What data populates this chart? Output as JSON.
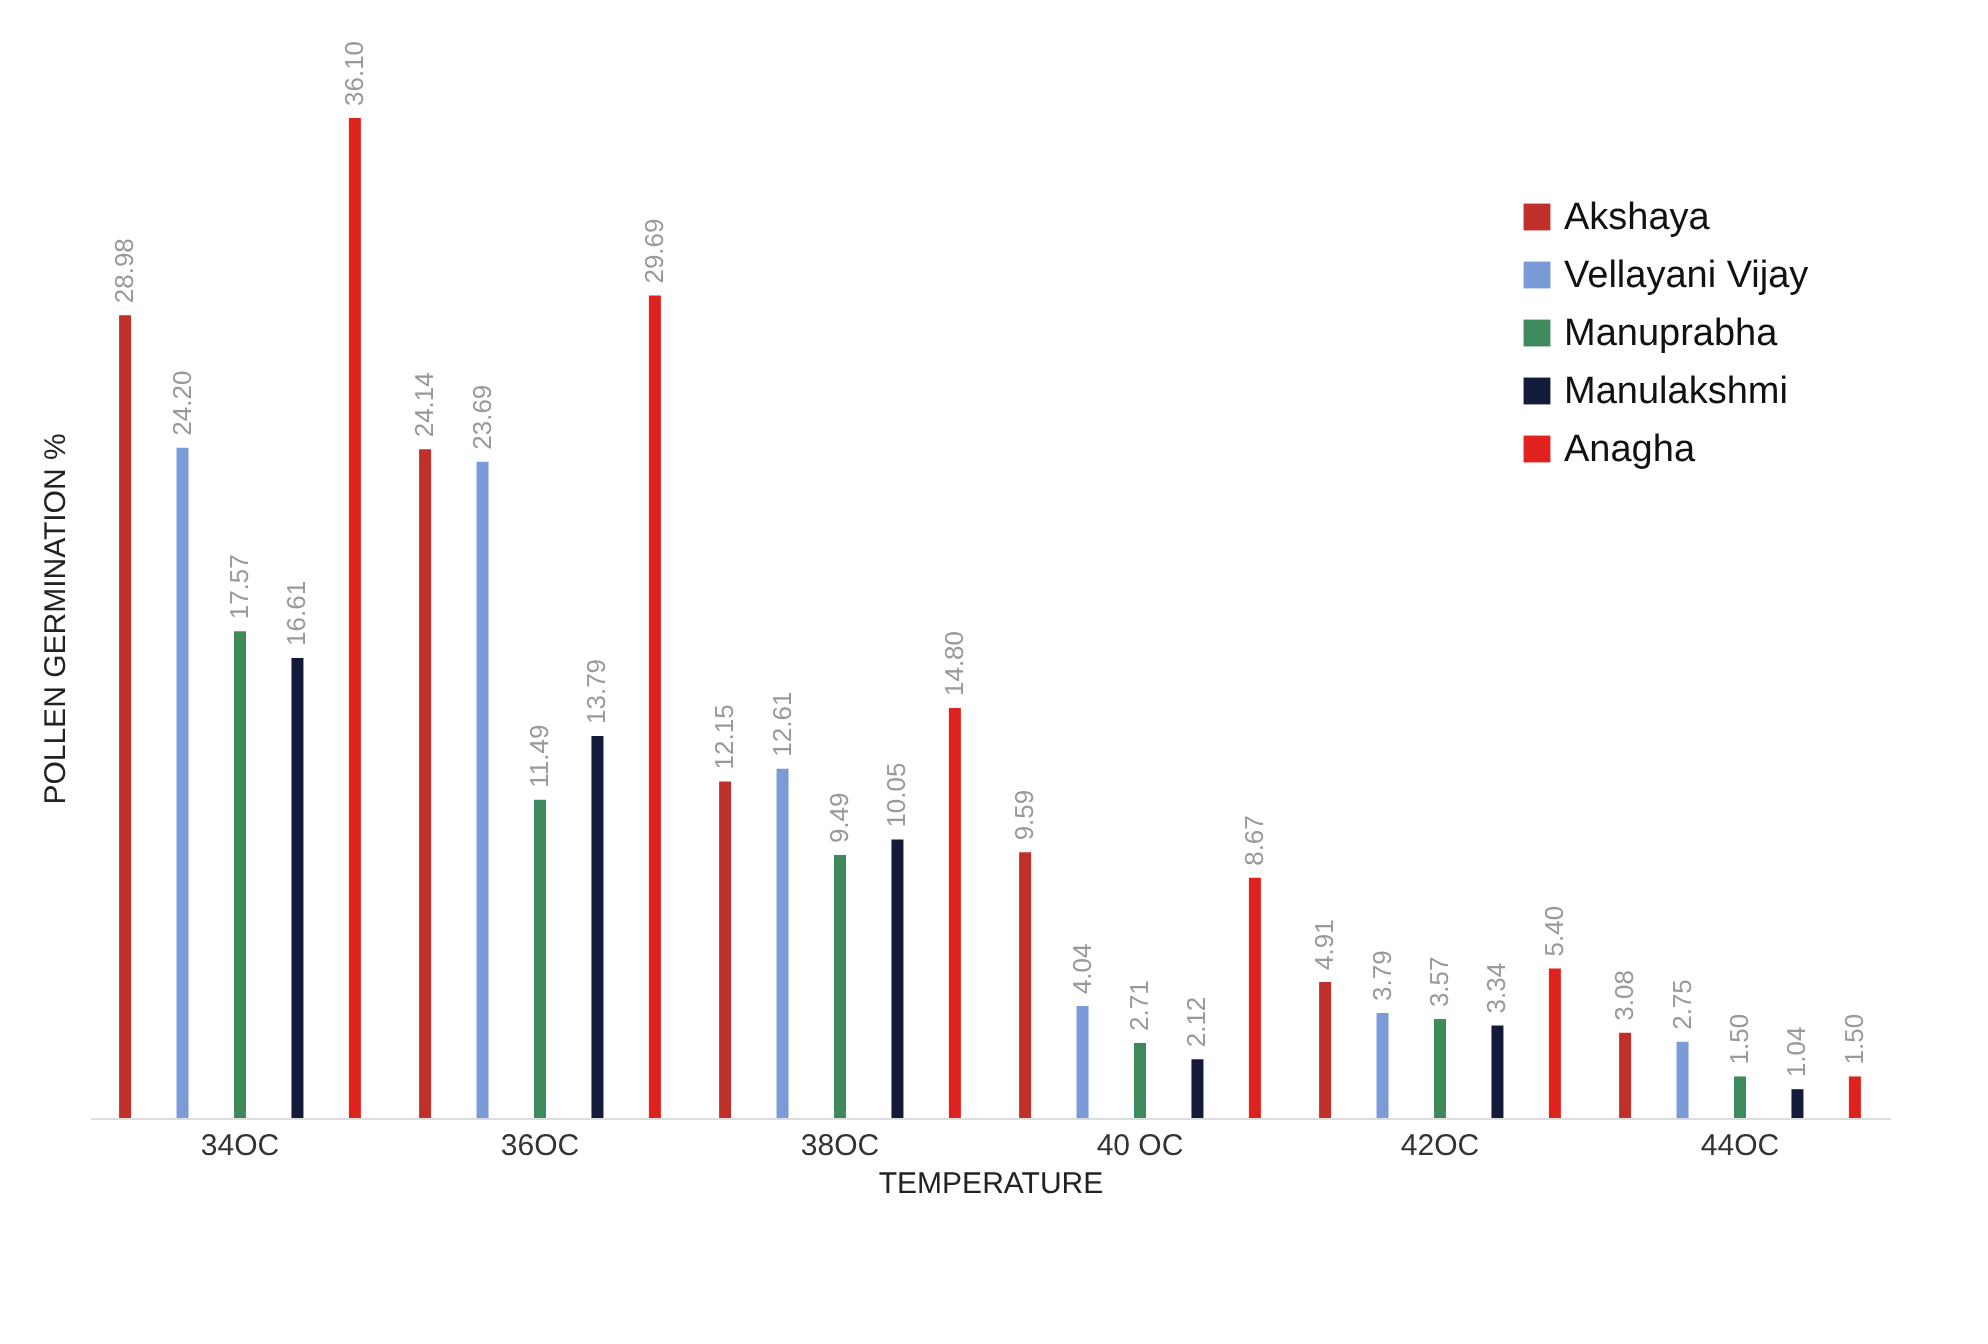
{
  "chart_data": {
    "type": "bar",
    "xlabel": "TEMPERATURE",
    "ylabel": "POLLEN GERMINATION %",
    "categories": [
      "34OC",
      "36OC",
      "38OC",
      "40 OC",
      "42OC",
      "44OC"
    ],
    "legend": "top right",
    "series": [
      {
        "name": "Akshaya",
        "color": "#c0302a",
        "values": [
          28.98,
          24.14,
          12.15,
          9.59,
          4.91,
          3.08
        ],
        "value_labels": [
          "28.98",
          "24.14",
          "12.15",
          "9.59",
          "4.91",
          "3.08"
        ]
      },
      {
        "name": "Vellayani Vijay",
        "color": "#7b9bd8",
        "values": [
          24.2,
          23.69,
          12.61,
          4.04,
          3.79,
          2.75
        ],
        "value_labels": [
          "24.20",
          "23.69",
          "12.61",
          "4.04",
          "3.79",
          "2.75"
        ]
      },
      {
        "name": "Manuprabha",
        "color": "#3e8a5c",
        "values": [
          17.57,
          11.49,
          9.49,
          2.71,
          3.57,
          1.5
        ],
        "value_labels": [
          "17.57",
          "11.49",
          "9.49",
          "2.71",
          "3.57",
          "1.50"
        ]
      },
      {
        "name": "Manulakshmi",
        "color": "#141a3a",
        "values": [
          16.61,
          13.79,
          10.05,
          2.12,
          3.34,
          1.04
        ],
        "value_labels": [
          "16.61",
          "13.79",
          "10.05",
          "2.12",
          "3.34",
          "1.04"
        ]
      },
      {
        "name": "Anagha",
        "color": "#e0221e",
        "values": [
          36.1,
          29.69,
          14.8,
          8.67,
          5.4,
          1.5
        ],
        "value_labels": [
          "36.10",
          "29.69",
          "14.80",
          "8.67",
          "5.40",
          "1.50"
        ]
      }
    ]
  }
}
